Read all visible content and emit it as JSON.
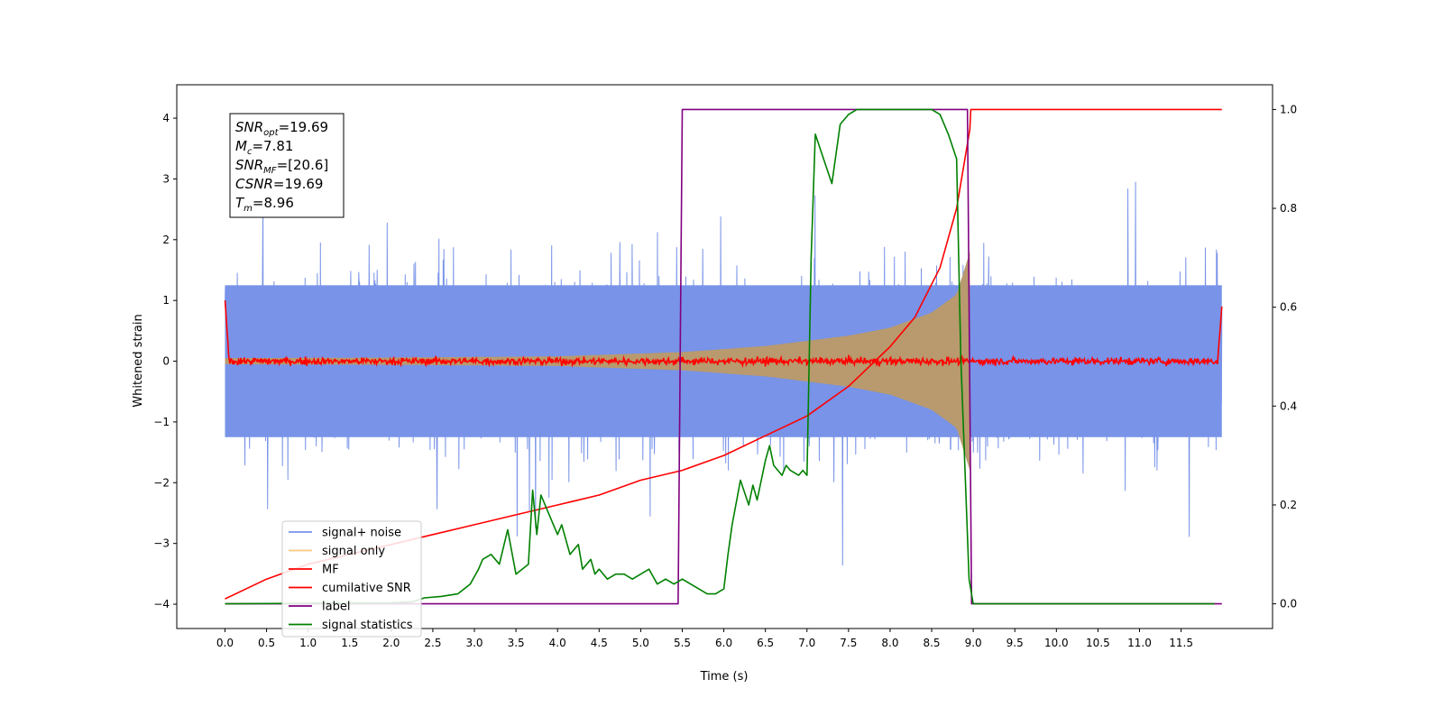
{
  "chart_data": {
    "type": "line",
    "xlabel": "Time (s)",
    "ylabel": "Whitened strain",
    "ylabel_right": "",
    "xlim": [
      -0.58,
      12.6
    ],
    "ylim_left": [
      -4.4,
      4.55
    ],
    "ylim_right": [
      -0.05,
      1.05
    ],
    "grid": false,
    "legend_position": "lower-left",
    "x_ticks": [
      "0.0",
      "0.5",
      "1.0",
      "1.5",
      "2.0",
      "2.5",
      "3.0",
      "3.5",
      "4.0",
      "4.5",
      "5.0",
      "5.5",
      "6.0",
      "6.5",
      "7.0",
      "7.5",
      "8.0",
      "8.5",
      "9.0",
      "9.5",
      "10.0",
      "10.5",
      "11.0",
      "11.5"
    ],
    "x_tick_values": [
      0,
      0.5,
      1,
      1.5,
      2,
      2.5,
      3,
      3.5,
      4,
      4.5,
      5,
      5.5,
      6,
      6.5,
      7,
      7.5,
      8,
      8.5,
      9,
      9.5,
      10,
      10.5,
      11,
      11.5
    ],
    "y_ticks_left": [
      "4",
      "3",
      "2",
      "1",
      "0",
      "−1",
      "−2",
      "−3",
      "−4"
    ],
    "y_tick_values_left": [
      4,
      3,
      2,
      1,
      0,
      -1,
      -2,
      -3,
      -4
    ],
    "y_ticks_right": [
      "1.0",
      "0.8",
      "0.6",
      "0.4",
      "0.2",
      "0.0"
    ],
    "y_tick_values_right": [
      1.0,
      0.8,
      0.6,
      0.4,
      0.2,
      0.0
    ],
    "annotation": {
      "lines": [
        {
          "base": "SNR",
          "sub": "opt",
          "value": "=19.69"
        },
        {
          "base": "M",
          "sub": "c",
          "value": "=7.81"
        },
        {
          "base": "SNR",
          "sub": "MF",
          "value": "=[20.6]"
        },
        {
          "base": "CSNR",
          "sub": "",
          "value": "=19.69"
        },
        {
          "base": "T",
          "sub": "m",
          "value": "=8.96"
        }
      ]
    },
    "series": [
      {
        "name": "signal+ noise",
        "color": "#7893e8",
        "axis": "left",
        "kind": "noise-band",
        "x_range": [
          0,
          11.99
        ],
        "amplitude_typical": 2.3,
        "amplitude_max": 4.1
      },
      {
        "name": "signal only",
        "color": "#f5c77e",
        "axis": "left",
        "kind": "chirp-envelope",
        "x_range": [
          0,
          8.96
        ],
        "envelope": [
          [
            0,
            0.05
          ],
          [
            2,
            0.06
          ],
          [
            4,
            0.08
          ],
          [
            5.5,
            0.15
          ],
          [
            6.5,
            0.25
          ],
          [
            7.5,
            0.42
          ],
          [
            8,
            0.55
          ],
          [
            8.5,
            0.8
          ],
          [
            8.8,
            1.1
          ],
          [
            8.96,
            1.8
          ]
        ]
      },
      {
        "name": "MF",
        "color": "#ff0000",
        "axis": "left",
        "kind": "noisy-flat",
        "x_range": [
          0,
          11.99
        ],
        "level": 0.0,
        "jitter": 0.07,
        "edges": [
          [
            0,
            1.0
          ],
          [
            11.99,
            0.9
          ]
        ]
      },
      {
        "name": "cumilative SNR",
        "color": "#ff0000",
        "axis": "right",
        "x": [
          0,
          0.5,
          1,
          1.5,
          2,
          2.5,
          3,
          3.5,
          4,
          4.5,
          5,
          5.5,
          6,
          6.5,
          7,
          7.5,
          8,
          8.3,
          8.6,
          8.8,
          8.96,
          8.97,
          9.5,
          10,
          11,
          11.99
        ],
        "y": [
          0.01,
          0.05,
          0.08,
          0.1,
          0.12,
          0.14,
          0.16,
          0.18,
          0.2,
          0.22,
          0.25,
          0.27,
          0.3,
          0.34,
          0.38,
          0.44,
          0.52,
          0.58,
          0.68,
          0.8,
          0.96,
          1.0,
          1.0,
          1.0,
          1.0,
          1.0
        ]
      },
      {
        "name": "label",
        "color": "#800080",
        "axis": "right",
        "x": [
          0,
          5.45,
          5.5,
          8.93,
          8.98,
          11.99
        ],
        "y": [
          0,
          0,
          1,
          1,
          0,
          0
        ]
      },
      {
        "name": "signal statistics",
        "color": "#008000",
        "axis": "right",
        "x": [
          0,
          1,
          2,
          2.25,
          2.4,
          2.6,
          2.8,
          2.95,
          3.05,
          3.1,
          3.2,
          3.3,
          3.4,
          3.5,
          3.65,
          3.7,
          3.75,
          3.8,
          3.85,
          3.9,
          4,
          4.05,
          4.15,
          4.25,
          4.3,
          4.4,
          4.45,
          4.5,
          4.6,
          4.7,
          4.8,
          4.9,
          5,
          5.1,
          5.2,
          5.3,
          5.4,
          5.5,
          5.6,
          5.7,
          5.8,
          5.9,
          6.0,
          6.05,
          6.1,
          6.2,
          6.3,
          6.35,
          6.4,
          6.5,
          6.55,
          6.6,
          6.65,
          6.7,
          6.75,
          6.8,
          6.9,
          6.95,
          7.0,
          7.05,
          7.1,
          7.2,
          7.3,
          7.4,
          7.5,
          7.6,
          7.8,
          8.0,
          8.5,
          8.6,
          8.7,
          8.8,
          8.85,
          8.95,
          9.0,
          9.5,
          10,
          11,
          11.9
        ],
        "y": [
          0,
          0.001,
          0.002,
          0.004,
          0.012,
          0.015,
          0.02,
          0.04,
          0.07,
          0.09,
          0.1,
          0.08,
          0.15,
          0.06,
          0.08,
          0.23,
          0.14,
          0.22,
          0.2,
          0.18,
          0.14,
          0.16,
          0.1,
          0.12,
          0.07,
          0.09,
          0.06,
          0.07,
          0.05,
          0.06,
          0.06,
          0.05,
          0.06,
          0.07,
          0.04,
          0.05,
          0.04,
          0.05,
          0.04,
          0.03,
          0.02,
          0.02,
          0.03,
          0.1,
          0.16,
          0.25,
          0.2,
          0.24,
          0.21,
          0.29,
          0.32,
          0.28,
          0.27,
          0.26,
          0.28,
          0.27,
          0.26,
          0.27,
          0.26,
          0.7,
          0.95,
          0.9,
          0.85,
          0.97,
          0.99,
          1.0,
          1.0,
          1.0,
          1.0,
          0.99,
          0.95,
          0.9,
          0.5,
          0.05,
          0.0,
          0.0,
          0.0,
          0.0,
          0.0
        ]
      }
    ]
  }
}
